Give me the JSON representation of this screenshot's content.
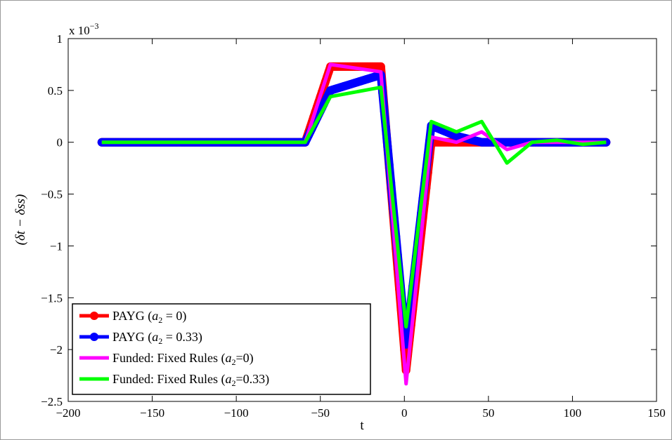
{
  "chart_data": {
    "type": "line",
    "xlabel": "t",
    "ylabel": "(δt − δss)",
    "y_multiplier": "x 10",
    "y_multiplier_exponent": "−3",
    "xlim": [
      -200,
      150
    ],
    "ylim": [
      -2.5,
      1
    ],
    "x_ticks": [
      -200,
      -150,
      -100,
      -50,
      0,
      50,
      100,
      150
    ],
    "x_tick_labels": [
      "−200",
      "−150",
      "−100",
      "−50",
      "0",
      "50",
      "100",
      "150"
    ],
    "y_ticks": [
      1,
      0.5,
      0,
      -0.5,
      -1,
      -1.5,
      -2,
      -2.5
    ],
    "y_tick_labels": [
      "1",
      "0.5",
      "0",
      "−0.5",
      "−1",
      "−1.5",
      "−2",
      "−2.5"
    ],
    "grid": false,
    "legend_position": "bottom-left",
    "series": [
      {
        "name": "PAYG (a2 = 0)",
        "legend_plain": "PAYG (",
        "legend_var": "a",
        "legend_sub": "2",
        "legend_rest": " = 0)",
        "color": "#ff0000",
        "marker": "circle",
        "x": [
          -180,
          -59,
          -44,
          -14,
          1,
          16,
          31,
          46,
          61,
          76,
          91,
          106,
          120
        ],
        "y": [
          0,
          0,
          0.73,
          0.73,
          -2.2,
          0.0,
          0.0,
          0.0,
          0.0,
          0.0,
          0.0,
          0.0,
          0.0
        ]
      },
      {
        "name": "PAYG (a2 = 0.33)",
        "legend_plain": "PAYG (",
        "legend_var": "a",
        "legend_sub": "2",
        "legend_rest": " = 0.33)",
        "color": "#0000ff",
        "marker": "circle",
        "x": [
          -180,
          -59,
          -44,
          -14,
          1,
          16,
          31,
          46,
          61,
          76,
          91,
          106,
          120
        ],
        "y": [
          0,
          0,
          0.5,
          0.65,
          -1.95,
          0.16,
          0.06,
          0.0,
          0.0,
          0.0,
          0.0,
          0.0,
          0.0
        ]
      },
      {
        "name": "Funded: Fixed Rules (a2=0)",
        "legend_plain": "Funded: Fixed Rules (",
        "legend_var": "a",
        "legend_sub": "2",
        "legend_rest": "=0)",
        "color": "#ff00ff",
        "marker": "none",
        "x": [
          -180,
          -59,
          -44,
          -14,
          1,
          16,
          31,
          46,
          61,
          76,
          91,
          106,
          120
        ],
        "y": [
          0,
          0,
          0.75,
          0.68,
          -2.33,
          0.05,
          0.0,
          0.1,
          -0.07,
          0.0,
          0.0,
          0.0,
          0.0
        ]
      },
      {
        "name": "Funded: Fixed Rules (a2=0.33)",
        "legend_plain": "Funded: Fixed Rules (",
        "legend_var": "a",
        "legend_sub": "2",
        "legend_rest": "=0.33)",
        "color": "#00ff00",
        "marker": "none",
        "x": [
          -180,
          -59,
          -44,
          -14,
          1,
          16,
          31,
          46,
          61,
          76,
          91,
          106,
          120
        ],
        "y": [
          0,
          0,
          0.44,
          0.53,
          -1.78,
          0.2,
          0.1,
          0.2,
          -0.2,
          0.0,
          0.02,
          -0.02,
          0.0
        ]
      }
    ]
  }
}
